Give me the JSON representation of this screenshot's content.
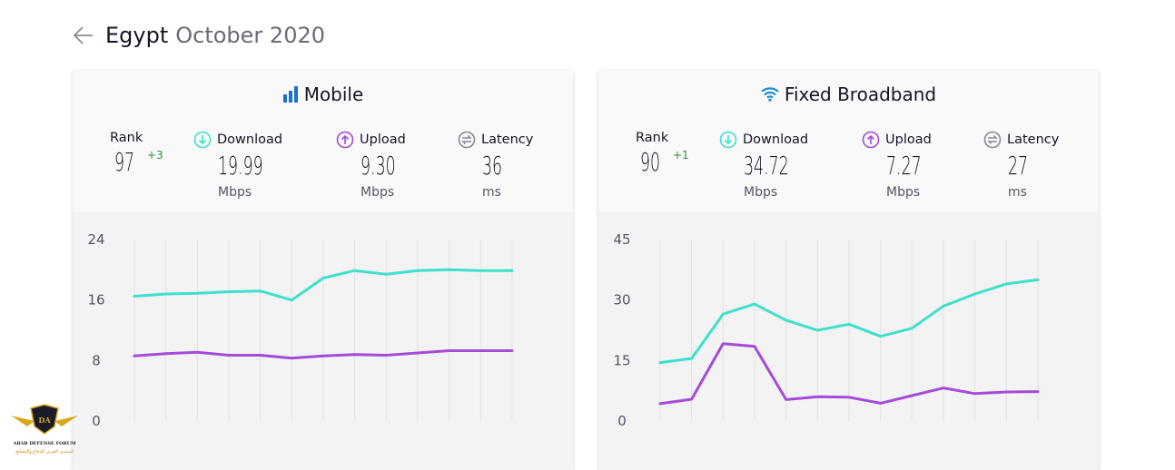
{
  "header": {
    "country": "Egypt",
    "period": "October 2020"
  },
  "colors": {
    "download": "#3fe0c9",
    "upload": "#a64ad8",
    "latency": "#888899",
    "rank_up": "#2e8b2e",
    "mobile_icon": "#1a73c6",
    "broadband_icon": "#1a8fd6"
  },
  "mobile": {
    "title": "Mobile",
    "icon": "signal-bars-icon",
    "rank_label": "Rank",
    "rank": "97",
    "rank_change": "+3",
    "download_label": "Download",
    "download": "19.99",
    "download_unit": "Mbps",
    "upload_label": "Upload",
    "upload": "9.30",
    "upload_unit": "Mbps",
    "latency_label": "Latency",
    "latency": "36",
    "latency_unit": "ms"
  },
  "broadband": {
    "title": "Fixed Broadband",
    "icon": "wifi-icon",
    "rank_label": "Rank",
    "rank": "90",
    "rank_change": "+1",
    "download_label": "Download",
    "download": "34.72",
    "download_unit": "Mbps",
    "upload_label": "Upload",
    "upload": "7.27",
    "upload_unit": "Mbps",
    "latency_label": "Latency",
    "latency": "27",
    "latency_unit": "ms"
  },
  "chart_data": [
    {
      "type": "line",
      "ylim": [
        0,
        24
      ],
      "yticks": [
        "24",
        "16",
        "8",
        "0"
      ],
      "series": [
        {
          "values": [
            16.5,
            16.8,
            16.9,
            17.1,
            17.2,
            16.0,
            18.9,
            19.9,
            19.4,
            19.9,
            20.0,
            19.9,
            19.9
          ]
        },
        {
          "values": [
            8.6,
            8.9,
            9.1,
            8.7,
            8.7,
            8.3,
            8.6,
            8.8,
            8.7,
            9.0,
            9.3,
            9.3,
            9.3
          ]
        }
      ]
    },
    {
      "type": "line",
      "ylim": [
        0,
        45
      ],
      "yticks": [
        "45",
        "30",
        "15",
        "0"
      ],
      "series": [
        {
          "values": [
            14.5,
            15.5,
            26.5,
            29,
            25,
            22.5,
            24,
            21,
            23,
            28.5,
            31.5,
            34,
            35
          ]
        },
        {
          "values": [
            4.3,
            5.4,
            19.2,
            18.5,
            5.3,
            6.0,
            5.9,
            4.4,
            6.3,
            8.2,
            6.8,
            7.2,
            7.3
          ]
        }
      ]
    }
  ],
  "watermark": {
    "logo_text": "DA",
    "line1": "ARAB DEFENSE FORUM",
    "line2": "المنتدى العربي للدفاع والتسليح"
  }
}
